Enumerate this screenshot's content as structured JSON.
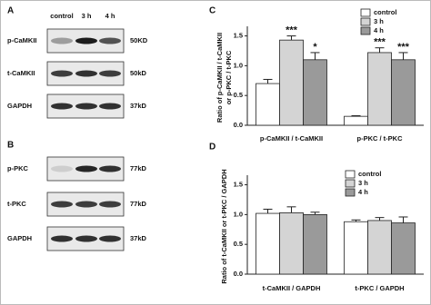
{
  "panels": {
    "a": "A",
    "b": "B",
    "c": "C",
    "d": "D"
  },
  "blots": [
    {
      "lanes": [
        "control",
        "3 h",
        "4 h"
      ],
      "rows": [
        {
          "label": "p-CaMKII",
          "size": "50KD"
        },
        {
          "label": "t-CaMKII",
          "size": "50kD"
        },
        {
          "label": "GAPDH",
          "size": "37kD"
        }
      ]
    },
    {
      "rows": [
        {
          "label": "p-PKC",
          "size": "77kD"
        },
        {
          "label": "t-PKC",
          "size": "77kD"
        },
        {
          "label": "GAPDH",
          "size": "37kD"
        }
      ]
    }
  ],
  "chart_data": [
    {
      "type": "bar",
      "ylabel": [
        "Ratio of p-CaMKII / t-CaMKII",
        "or p-PKC / t-PKC"
      ],
      "categories": [
        "p-CaMKII / t-CaMKII",
        "p-PKC / t-PKC"
      ],
      "series": [
        {
          "name": "control",
          "color": "#ffffff",
          "values": [
            0.7,
            0.15
          ],
          "errors": [
            0.07,
            0.01
          ]
        },
        {
          "name": "3 h",
          "color": "#d4d4d4",
          "values": [
            1.43,
            1.22
          ],
          "errors": [
            0.07,
            0.08
          ],
          "significance": [
            "***",
            "***"
          ]
        },
        {
          "name": "4 h",
          "color": "#9a9a9a",
          "values": [
            1.1,
            1.1
          ],
          "errors": [
            0.12,
            0.12
          ],
          "significance": [
            "*",
            "***"
          ]
        }
      ],
      "ylim": [
        0,
        1.6
      ],
      "yticks": [
        {
          "value": 0,
          "label": "0.0"
        },
        0.5,
        {
          "value": 1,
          "label": "1.0"
        },
        1.5
      ],
      "legend": "upper right"
    },
    {
      "type": "bar",
      "ylabel": [
        "Ratio of t-CaMKII or t-PKC / GAPDH"
      ],
      "categories": [
        "t-CaMKII / GAPDH",
        "t-PKC / GAPDH"
      ],
      "series": [
        {
          "name": "control",
          "color": "#ffffff",
          "values": [
            1.02,
            0.88
          ],
          "errors": [
            0.07,
            0.03
          ]
        },
        {
          "name": "3 h",
          "color": "#d4d4d4",
          "values": [
            1.03,
            0.9
          ],
          "errors": [
            0.1,
            0.05
          ]
        },
        {
          "name": "4 h",
          "color": "#9a9a9a",
          "values": [
            1.0,
            0.86
          ],
          "errors": [
            0.04,
            0.1
          ]
        }
      ],
      "ylim": [
        0,
        1.6
      ],
      "yticks": [
        {
          "value": 0,
          "label": "0.0"
        },
        0.5,
        {
          "value": 1,
          "label": "1.0"
        },
        1.5
      ],
      "legend": "upper right"
    }
  ]
}
